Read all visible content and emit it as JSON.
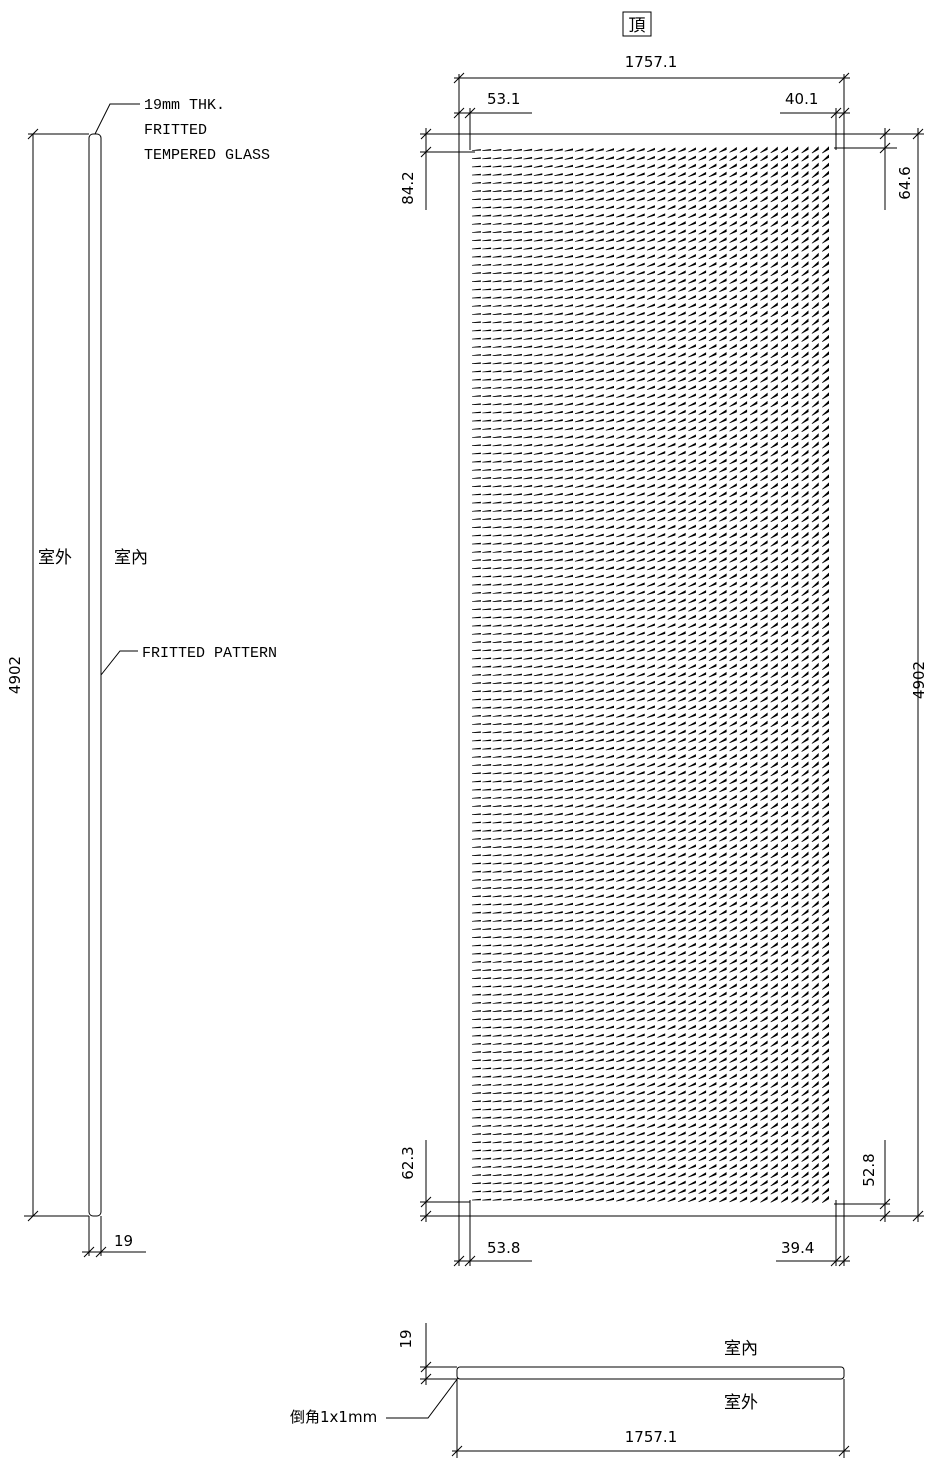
{
  "top_marker": "頂",
  "side_view": {
    "note_glass": [
      "19mm THK.",
      "FRITTED",
      "TEMPERED GLASS"
    ],
    "note_pattern": "FRITTED PATTERN",
    "outdoor": "室外",
    "indoor": "室內",
    "height_dim": "4902",
    "thickness_dim": "19"
  },
  "elevation": {
    "overall_width": "1757.1",
    "top_left_margin": "53.1",
    "top_right_margin": "40.1",
    "left_top_margin": "84.2",
    "right_top_margin": "64.6",
    "height": "4902",
    "left_bottom_margin": "62.3",
    "right_bottom_margin": "52.8",
    "bottom_left_margin": "53.8",
    "bottom_right_margin": "39.4"
  },
  "section": {
    "thickness_dim": "19",
    "indoor": "室內",
    "outdoor": "室外",
    "chamfer_note": "倒角1x1mm",
    "width": "1757.1"
  }
}
